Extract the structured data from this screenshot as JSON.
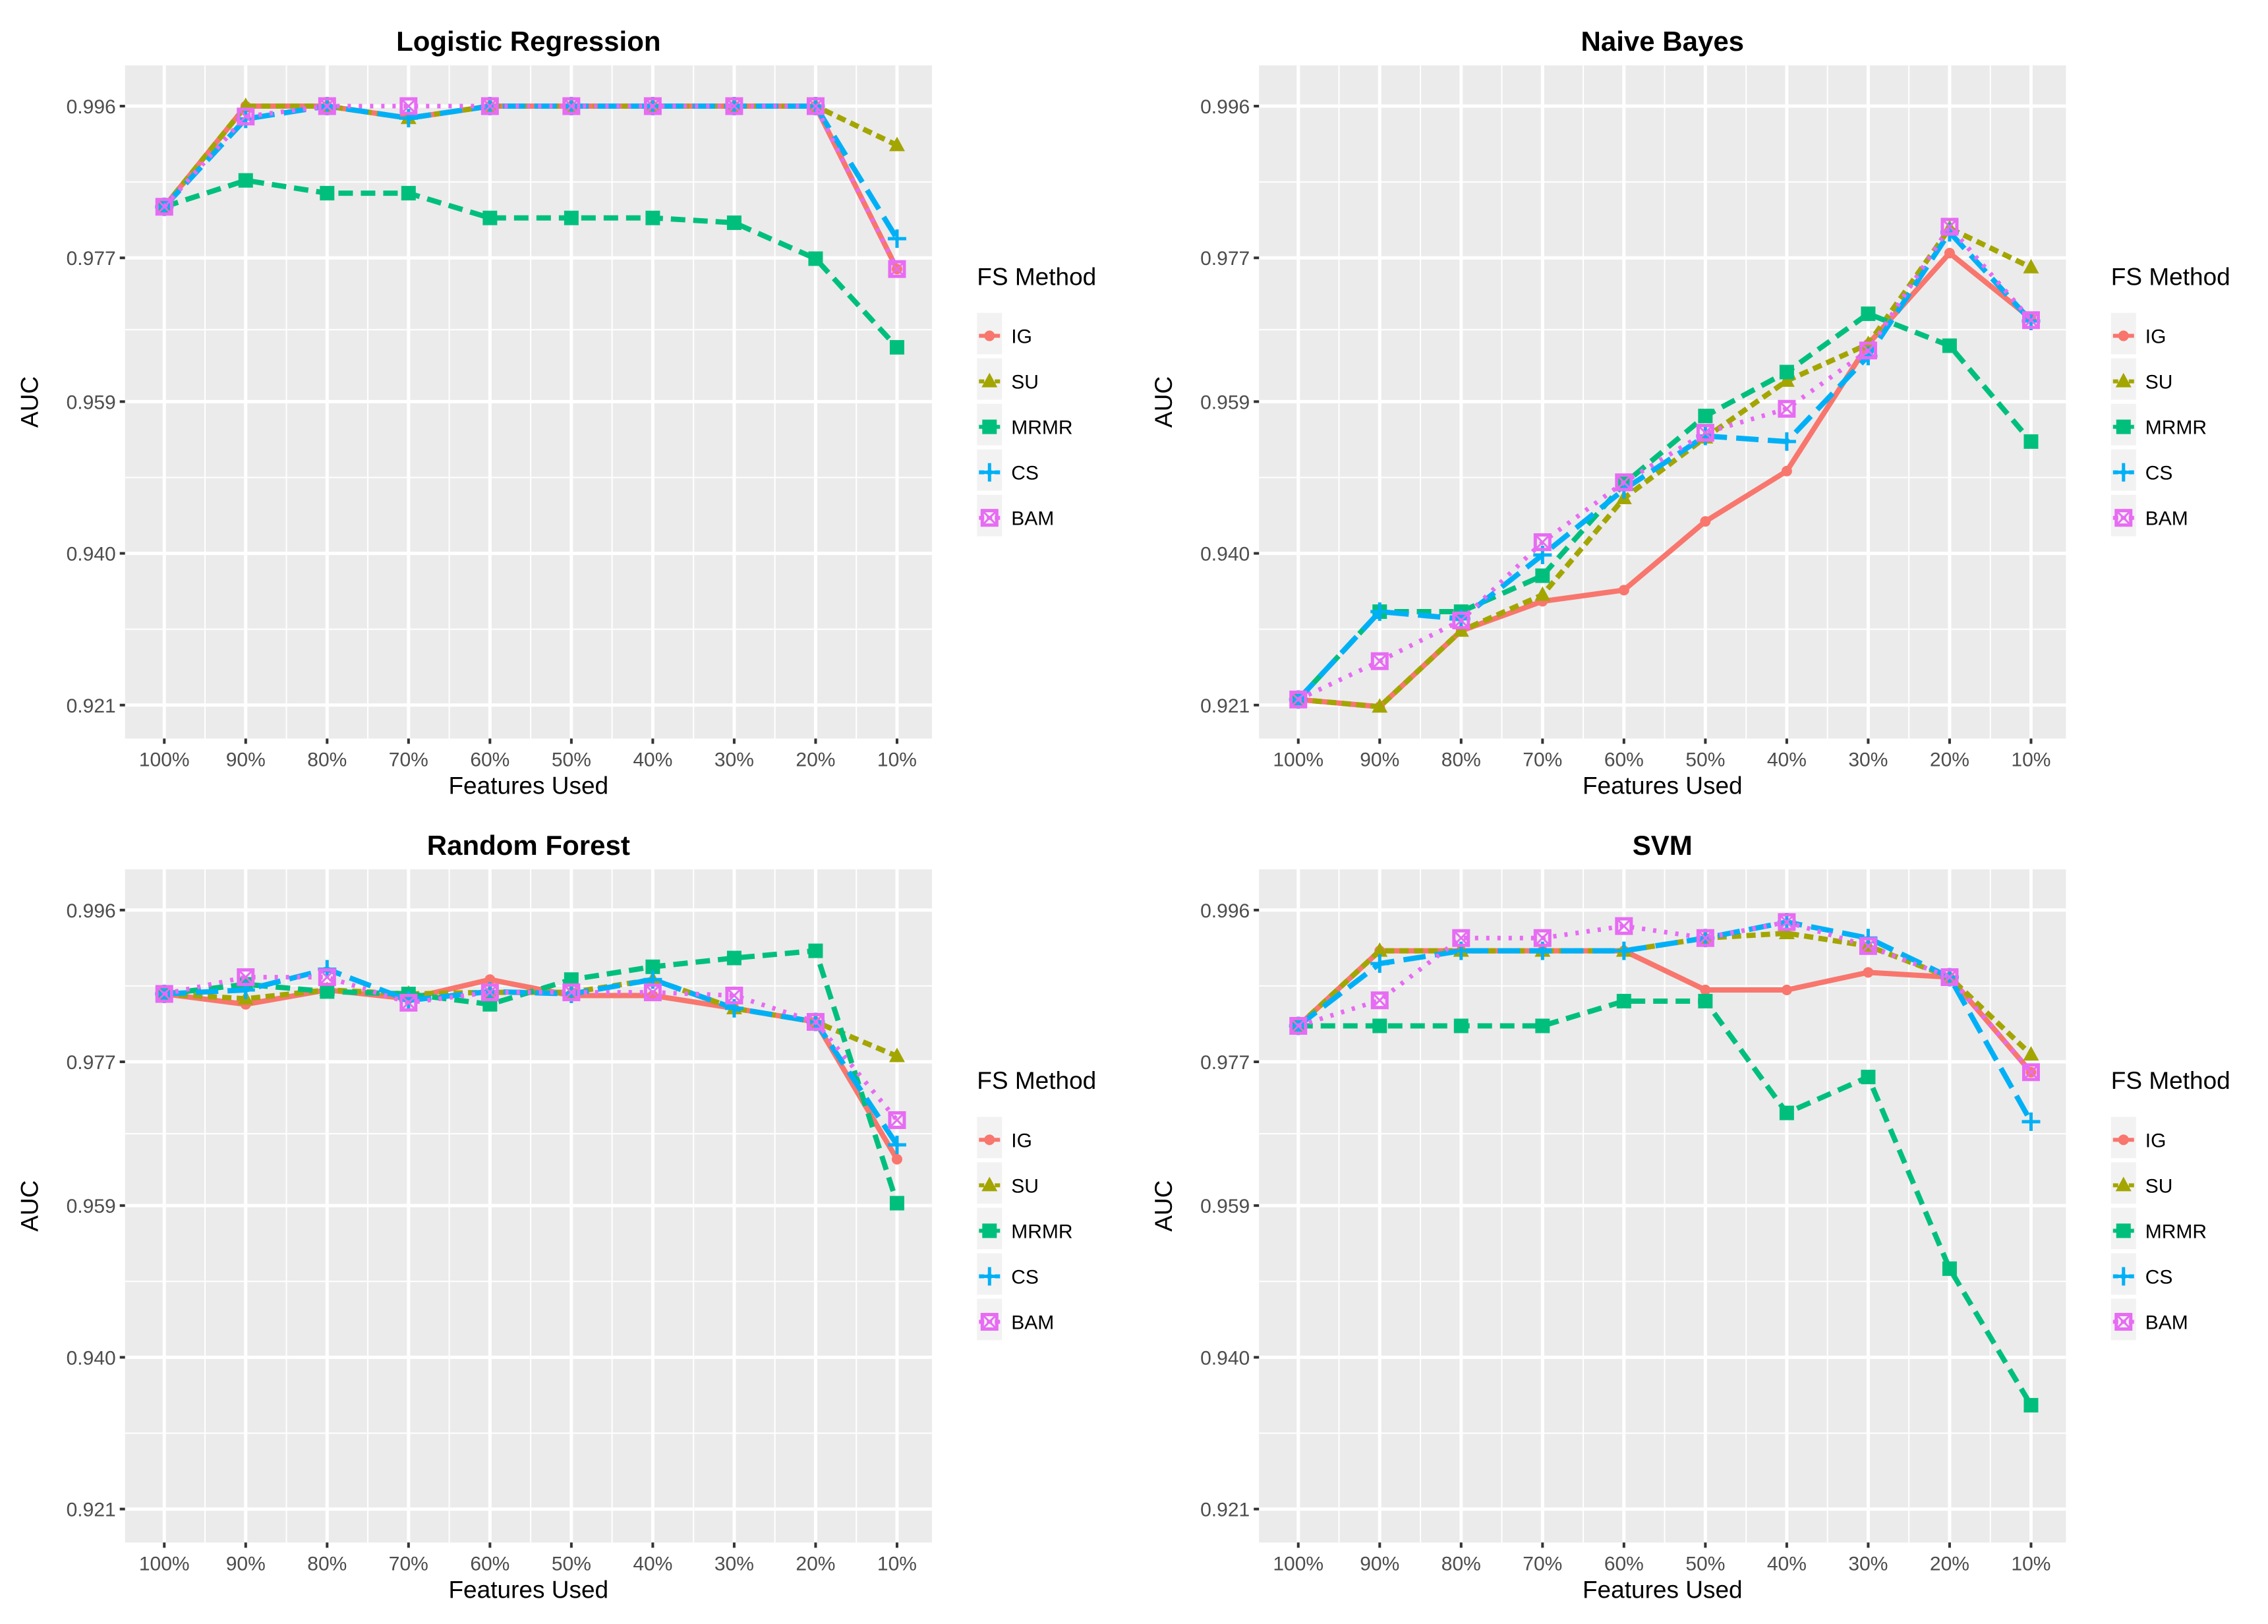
{
  "colors": {
    "IG": "#F8766D",
    "SU": "#A3A500",
    "MRMR": "#00BF7D",
    "CS": "#00B0F6",
    "BAM": "#E76BF3",
    "panel_bg": "#EBEBEB",
    "grid": "#FFFFFF"
  },
  "chart_data": [
    {
      "type": "line",
      "title": "Logistic Regression",
      "xlabel": "Features Used",
      "ylabel": "AUC",
      "categories": [
        "100%",
        "90%",
        "80%",
        "70%",
        "60%",
        "50%",
        "40%",
        "30%",
        "20%",
        "10%"
      ],
      "yticks": [
        "0.921",
        "0.940",
        "0.959",
        "0.977",
        "0.996"
      ],
      "ylim": [
        0.9175,
        0.999
      ],
      "legend_title": "FS Method",
      "legend_position": "right",
      "series": [
        {
          "name": "IG",
          "values": [
            0.9834,
            0.996,
            0.996,
            0.9945,
            0.996,
            0.996,
            0.996,
            0.996,
            0.996,
            0.9756
          ]
        },
        {
          "name": "SU",
          "values": [
            0.9834,
            0.996,
            0.996,
            0.9945,
            0.996,
            0.996,
            0.996,
            0.996,
            0.996,
            0.9911
          ]
        },
        {
          "name": "MRMR",
          "values": [
            0.9834,
            0.9867,
            0.9851,
            0.9851,
            0.982,
            0.982,
            0.982,
            0.9814,
            0.9769,
            0.9658
          ]
        },
        {
          "name": "CS",
          "values": [
            0.9834,
            0.9944,
            0.996,
            0.9945,
            0.996,
            0.996,
            0.996,
            0.996,
            0.996,
            0.9794
          ]
        },
        {
          "name": "BAM",
          "values": [
            0.9834,
            0.9947,
            0.996,
            0.996,
            0.996,
            0.996,
            0.996,
            0.996,
            0.996,
            0.9756
          ]
        }
      ]
    },
    {
      "type": "line",
      "title": "Naive Bayes",
      "xlabel": "Features Used",
      "ylabel": "AUC",
      "categories": [
        "100%",
        "90%",
        "80%",
        "70%",
        "60%",
        "50%",
        "40%",
        "30%",
        "20%",
        "10%"
      ],
      "yticks": [
        "0.921",
        "0.940",
        "0.959",
        "0.977",
        "0.996"
      ],
      "ylim": [
        0.9175,
        0.999
      ],
      "legend_title": "FS Method",
      "legend_position": "right",
      "series": [
        {
          "name": "IG",
          "values": [
            0.9217,
            0.9208,
            0.9303,
            0.934,
            0.9354,
            0.944,
            0.9503,
            0.9662,
            0.9776,
            0.9694
          ]
        },
        {
          "name": "SU",
          "values": [
            0.9217,
            0.9208,
            0.9303,
            0.9348,
            0.9469,
            0.9545,
            0.9616,
            0.9662,
            0.9807,
            0.9758
          ]
        },
        {
          "name": "MRMR",
          "values": [
            0.9217,
            0.9327,
            0.9327,
            0.9372,
            0.9487,
            0.9572,
            0.9627,
            0.97,
            0.966,
            0.954
          ]
        },
        {
          "name": "CS",
          "values": [
            0.9217,
            0.9327,
            0.9318,
            0.9398,
            0.948,
            0.9547,
            0.954,
            0.9647,
            0.9802,
            0.9691
          ]
        },
        {
          "name": "BAM",
          "values": [
            0.9217,
            0.9265,
            0.9316,
            0.9414,
            0.9489,
            0.9551,
            0.9581,
            0.9654,
            0.9809,
            0.9692
          ]
        }
      ]
    },
    {
      "type": "line",
      "title": "Random Forest",
      "xlabel": "Features Used",
      "ylabel": "AUC",
      "categories": [
        "100%",
        "90%",
        "80%",
        "70%",
        "60%",
        "50%",
        "40%",
        "30%",
        "20%",
        "10%"
      ],
      "yticks": [
        "0.921",
        "0.940",
        "0.959",
        "0.977",
        "0.996"
      ],
      "ylim": [
        0.9175,
        0.999
      ],
      "legend_title": "FS Method",
      "legend_position": "right",
      "series": [
        {
          "name": "IG",
          "values": [
            0.9855,
            0.9842,
            0.986,
            0.9849,
            0.9873,
            0.9853,
            0.9853,
            0.9837,
            0.982,
            0.9648
          ]
        },
        {
          "name": "SU",
          "values": [
            0.9855,
            0.9849,
            0.986,
            0.9855,
            0.9857,
            0.9857,
            0.9873,
            0.9837,
            0.982,
            0.9777
          ]
        },
        {
          "name": "MRMR",
          "values": [
            0.9855,
            0.9867,
            0.9858,
            0.9855,
            0.9842,
            0.9873,
            0.9889,
            0.99,
            0.9909,
            0.9593
          ]
        },
        {
          "name": "CS",
          "values": [
            0.9855,
            0.986,
            0.9886,
            0.9847,
            0.9858,
            0.9855,
            0.9873,
            0.9837,
            0.982,
            0.9666
          ]
        },
        {
          "name": "BAM",
          "values": [
            0.9855,
            0.9876,
            0.9876,
            0.9844,
            0.9857,
            0.9857,
            0.9857,
            0.9853,
            0.982,
            0.9697
          ]
        }
      ]
    },
    {
      "type": "line",
      "title": "SVM",
      "xlabel": "Features Used",
      "ylabel": "AUC",
      "categories": [
        "100%",
        "90%",
        "80%",
        "70%",
        "60%",
        "50%",
        "40%",
        "30%",
        "20%",
        "10%"
      ],
      "yticks": [
        "0.921",
        "0.940",
        "0.959",
        "0.977",
        "0.996"
      ],
      "ylim": [
        0.9175,
        0.999
      ],
      "legend_title": "FS Method",
      "legend_position": "right",
      "series": [
        {
          "name": "IG",
          "values": [
            0.9815,
            0.9909,
            0.9909,
            0.9909,
            0.9909,
            0.986,
            0.986,
            0.9882,
            0.9876,
            0.9757
          ]
        },
        {
          "name": "SU",
          "values": [
            0.9815,
            0.9909,
            0.9909,
            0.9909,
            0.9909,
            0.9925,
            0.9931,
            0.9915,
            0.9876,
            0.9779
          ]
        },
        {
          "name": "MRMR",
          "values": [
            0.9815,
            0.9815,
            0.9815,
            0.9815,
            0.9846,
            0.9846,
            0.9706,
            0.9751,
            0.9511,
            0.934
          ]
        },
        {
          "name": "CS",
          "values": [
            0.9815,
            0.9893,
            0.9909,
            0.9909,
            0.9909,
            0.9925,
            0.9945,
            0.9925,
            0.9876,
            0.9695
          ]
        },
        {
          "name": "BAM",
          "values": [
            0.9815,
            0.9847,
            0.9925,
            0.9925,
            0.994,
            0.9925,
            0.9945,
            0.9915,
            0.9876,
            0.9757
          ]
        }
      ]
    }
  ]
}
